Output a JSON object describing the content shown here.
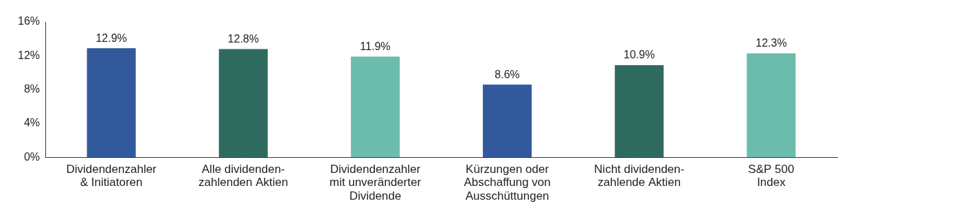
{
  "chart_data": {
    "type": "bar",
    "categories": [
      [
        "Dividendenzahler",
        "& Initiatoren"
      ],
      [
        "Alle dividenden-",
        "zahlenden Aktien"
      ],
      [
        "Dividendenzahler",
        "mit unveränderter",
        "Dividende"
      ],
      [
        "Kürzungen oder",
        "Abschaffung von",
        "Ausschüttungen"
      ],
      [
        "Nicht dividenden-",
        "zahlende Aktien"
      ],
      [
        "S&P 500",
        "Index"
      ]
    ],
    "values": [
      12.9,
      12.8,
      11.9,
      8.6,
      10.9,
      12.3
    ],
    "value_labels": [
      "12.9%",
      "12.8%",
      "11.9%",
      "8.6%",
      "10.9%",
      "12.3%"
    ],
    "colors": [
      "#32599c",
      "#2e6b5e",
      "#6bbcad",
      "#32599c",
      "#2e6b5e",
      "#6bbcad"
    ],
    "ylim": [
      0,
      16
    ],
    "yticks": [
      {
        "value": 0,
        "label": "0%"
      },
      {
        "value": 4,
        "label": "4%"
      },
      {
        "value": 8,
        "label": "8%"
      },
      {
        "value": 12,
        "label": "12%"
      },
      {
        "value": 16,
        "label": "16%"
      }
    ],
    "grid": false,
    "data_labels": true
  }
}
